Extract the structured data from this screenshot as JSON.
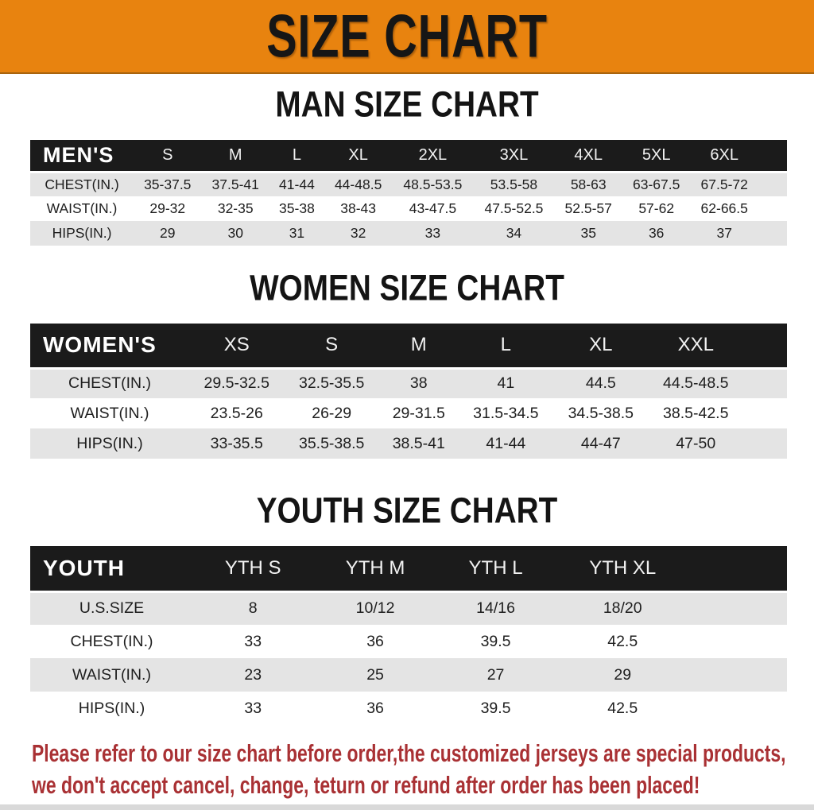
{
  "banner": {
    "title": "SIZE CHART"
  },
  "colors": {
    "banner_bg": "#e8830f",
    "table_header_bg": "#1b1b1b",
    "stripe_bg": "#e4e4e4",
    "footer_text": "#a93134"
  },
  "charts": [
    {
      "id": "men",
      "title": "MAN SIZE CHART",
      "header_label": "MEN'S",
      "columns": [
        "S",
        "M",
        "L",
        "XL",
        "2XL",
        "3XL",
        "4XL",
        "5XL",
        "6XL"
      ],
      "rows": [
        {
          "label": "CHEST(IN.)",
          "values": [
            "35-37.5",
            "37.5-41",
            "41-44",
            "44-48.5",
            "48.5-53.5",
            "53.5-58",
            "58-63",
            "63-67.5",
            "67.5-72"
          ]
        },
        {
          "label": "WAIST(IN.)",
          "values": [
            "29-32",
            "32-35",
            "35-38",
            "38-43",
            "43-47.5",
            "47.5-52.5",
            "52.5-57",
            "57-62",
            "62-66.5"
          ]
        },
        {
          "label": "HIPS(IN.)",
          "values": [
            "29",
            "30",
            "31",
            "32",
            "33",
            "34",
            "35",
            "36",
            "37"
          ]
        }
      ]
    },
    {
      "id": "women",
      "title": "WOMEN SIZE CHART",
      "header_label": "WOMEN'S",
      "columns": [
        "XS",
        "S",
        "M",
        "L",
        "XL",
        "XXL"
      ],
      "rows": [
        {
          "label": "CHEST(IN.)",
          "values": [
            "29.5-32.5",
            "32.5-35.5",
            "38",
            "41",
            "44.5",
            "44.5-48.5"
          ]
        },
        {
          "label": "WAIST(IN.)",
          "values": [
            "23.5-26",
            "26-29",
            "29-31.5",
            "31.5-34.5",
            "34.5-38.5",
            "38.5-42.5"
          ]
        },
        {
          "label": "HIPS(IN.)",
          "values": [
            "33-35.5",
            "35.5-38.5",
            "38.5-41",
            "41-44",
            "44-47",
            "47-50"
          ]
        }
      ]
    },
    {
      "id": "youth",
      "title": "YOUTH SIZE CHART",
      "header_label": "YOUTH",
      "columns": [
        "YTH S",
        "YTH M",
        "YTH L",
        "YTH XL"
      ],
      "rows": [
        {
          "label": "U.S.SIZE",
          "values": [
            "8",
            "10/12",
            "14/16",
            "18/20"
          ]
        },
        {
          "label": "CHEST(IN.)",
          "values": [
            "33",
            "36",
            "39.5",
            "42.5"
          ]
        },
        {
          "label": "WAIST(IN.)",
          "values": [
            "23",
            "25",
            "27",
            "29"
          ]
        },
        {
          "label": "HIPS(IN.)",
          "values": [
            "33",
            "36",
            "39.5",
            "42.5"
          ]
        }
      ]
    }
  ],
  "footer": {
    "line1": "Please refer to our size chart before order,the customized jerseys are special products,",
    "line2": "we don't accept cancel, change, teturn or refund after order has been placed!"
  }
}
